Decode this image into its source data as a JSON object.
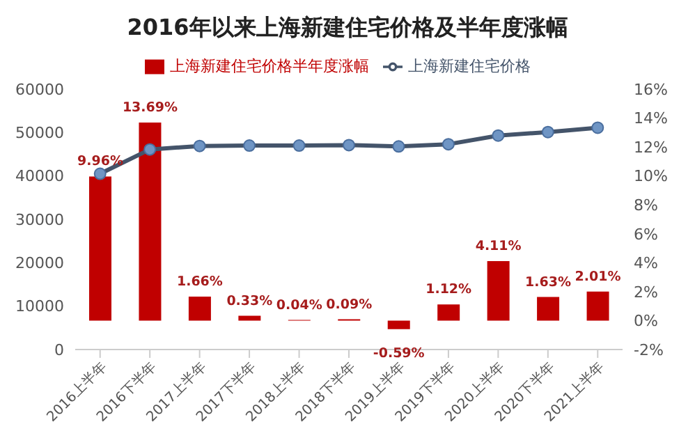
{
  "chart_data": {
    "type": "bar",
    "title": "2016年以来上海新建住宅价格及半年度涨幅",
    "categories": [
      "2016上半年",
      "2016下半年",
      "2017上半年",
      "2017下半年",
      "2018上半年",
      "2018下半年",
      "2019上半年",
      "2019下半年",
      "2020上半年",
      "2020下半年",
      "2021上半年"
    ],
    "series": [
      {
        "name": "上海新建住宅价格半年度涨幅",
        "axis": "y2",
        "color": "#c00000",
        "values": [
          9.96,
          13.69,
          1.66,
          0.33,
          0.04,
          0.09,
          -0.59,
          1.12,
          4.11,
          1.63,
          2.01
        ],
        "value_labels": [
          "9.96%",
          "13.69%",
          "1.66%",
          "0.33%",
          "0.04%",
          "0.09%",
          "-0.59%",
          "1.12%",
          "4.11%",
          "1.63%",
          "2.01%"
        ]
      },
      {
        "name": "上海新建住宅价格",
        "type": "line",
        "color": "#44546a",
        "marker": "circle",
        "values": [
          40500,
          46100,
          46900,
          47000,
          47000,
          47100,
          46800,
          47300,
          49300,
          50100,
          51100
        ]
      }
    ],
    "ylim": [
      0,
      60000
    ],
    "yticks": [
      0,
      10000,
      20000,
      30000,
      40000,
      50000,
      60000
    ],
    "y2lim": [
      -2,
      16
    ],
    "y2ticks": [
      {
        "value": -2,
        "label": "-2%"
      },
      {
        "value": 0,
        "label": "0%"
      },
      {
        "value": 2,
        "label": "2%"
      },
      {
        "value": 4,
        "label": "4%"
      },
      {
        "value": 6,
        "label": "6%"
      },
      {
        "value": 8,
        "label": "8%"
      },
      {
        "value": 10,
        "label": "10%"
      },
      {
        "value": 12,
        "label": "12%"
      },
      {
        "value": 14,
        "label": "14%"
      },
      {
        "value": 16,
        "label": "16%"
      }
    ],
    "grid": false,
    "legend": "top"
  }
}
